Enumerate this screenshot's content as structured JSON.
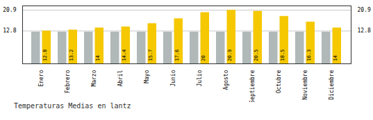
{
  "chart_data": {
    "type": "bar",
    "title": "Temperaturas Medias en lantz",
    "categories": [
      "Enero",
      "Febrero",
      "Marzo",
      "Abril",
      "Mayo",
      "Junio",
      "Julio",
      "Agosto",
      "Septiembre",
      "Octubre",
      "Noviembre",
      "Diciembre"
    ],
    "series": [
      {
        "color": "#B0B8B8",
        "values": [
          12.4,
          12.4,
          12.4,
          12.4,
          12.4,
          12.4,
          12.4,
          12.4,
          12.4,
          12.4,
          12.4,
          12.4
        ]
      },
      {
        "color": "#F5C800",
        "values": [
          12.8,
          13.2,
          14.0,
          14.4,
          15.7,
          17.6,
          20.0,
          20.9,
          20.5,
          18.5,
          16.3,
          14.0
        ],
        "data_labels": true
      }
    ],
    "ylim": [
      0,
      22.6
    ],
    "yticks": [
      12.8,
      20.9
    ],
    "y2lim": [
      0,
      22.6
    ],
    "y2ticks": [
      12.8,
      20.9
    ],
    "grid": true
  }
}
